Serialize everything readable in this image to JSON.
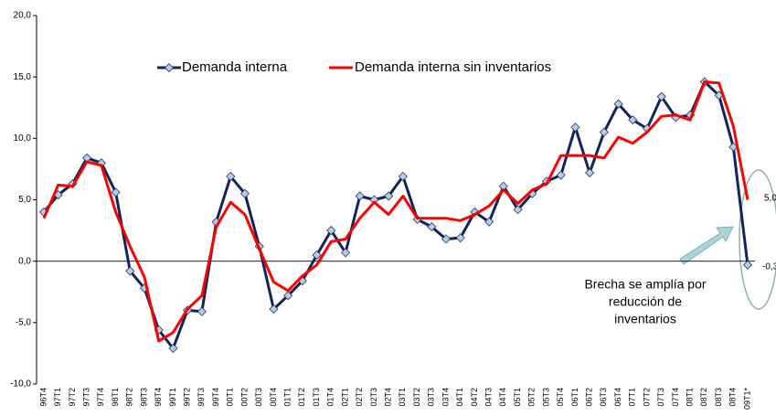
{
  "chart_data": {
    "type": "line",
    "categories": [
      "96T4",
      "97T1",
      "97T2",
      "97T3",
      "97T4",
      "98T1",
      "98T2",
      "98T3",
      "98T4",
      "99T1",
      "99T2",
      "99T3",
      "99T4",
      "00T1",
      "00T2",
      "00T3",
      "00T4",
      "01T1",
      "01T2",
      "01T3",
      "01T4",
      "02T1",
      "02T2",
      "02T3",
      "02T4",
      "03T1",
      "03T2",
      "03T3",
      "03T4",
      "04T1",
      "04T2",
      "04T3",
      "04T4",
      "05T1",
      "05T2",
      "05T3",
      "05T4",
      "06T1",
      "06T2",
      "06T3",
      "06T4",
      "07T1",
      "07T2",
      "07T3",
      "07T4",
      "08T1",
      "08T2",
      "08T3",
      "08T4",
      "09T1*"
    ],
    "series": [
      {
        "name": "Demanda interna",
        "color": "#13235b",
        "marker": "diamond",
        "values": [
          4.0,
          5.4,
          6.3,
          8.4,
          8.0,
          5.6,
          -0.8,
          -2.2,
          -5.6,
          -7.1,
          -4.0,
          -4.1,
          3.2,
          6.9,
          5.5,
          1.2,
          -3.9,
          -2.8,
          -1.6,
          0.5,
          2.5,
          0.7,
          5.3,
          5.0,
          5.3,
          6.9,
          3.4,
          2.8,
          1.8,
          1.9,
          4.0,
          3.2,
          6.1,
          4.2,
          5.5,
          6.5,
          7.0,
          10.9,
          7.2,
          10.5,
          12.8,
          11.5,
          10.8,
          13.4,
          11.7,
          11.9,
          14.6,
          13.5,
          9.3,
          -0.3
        ]
      },
      {
        "name": "Demanda interna sin inventarios",
        "color": "#ff0000",
        "values": [
          3.5,
          6.2,
          6.1,
          8.1,
          7.8,
          4.0,
          1.2,
          -1.3,
          -6.5,
          -5.8,
          -3.9,
          -2.8,
          2.8,
          4.8,
          3.8,
          1.0,
          -1.7,
          -2.4,
          -1.2,
          -0.3,
          1.6,
          1.8,
          3.5,
          4.8,
          3.8,
          5.3,
          3.5,
          3.5,
          3.5,
          3.3,
          3.8,
          4.5,
          5.8,
          4.7,
          5.8,
          6.3,
          8.6,
          8.6,
          8.6,
          8.4,
          10.1,
          9.6,
          10.5,
          11.8,
          11.9,
          11.5,
          14.6,
          14.5,
          11.0,
          5.0
        ]
      }
    ],
    "ylim": [
      -10,
      20
    ],
    "yticks": [
      {
        "value": -10,
        "label": "-10,0"
      },
      {
        "value": -5,
        "label": "-5,0"
      },
      {
        "value": 0,
        "label": "0,0"
      },
      {
        "value": 5,
        "label": "5,0"
      },
      {
        "value": 10,
        "label": "10,0"
      },
      {
        "value": 15,
        "label": "15,0"
      },
      {
        "value": 20,
        "label": "20,0"
      }
    ],
    "annotations": [
      {
        "text": "5,0"
      },
      {
        "text": "-0,3"
      },
      {
        "lines": [
          "Brecha se amplía por",
          "reducción de",
          "inventarios"
        ]
      }
    ]
  }
}
